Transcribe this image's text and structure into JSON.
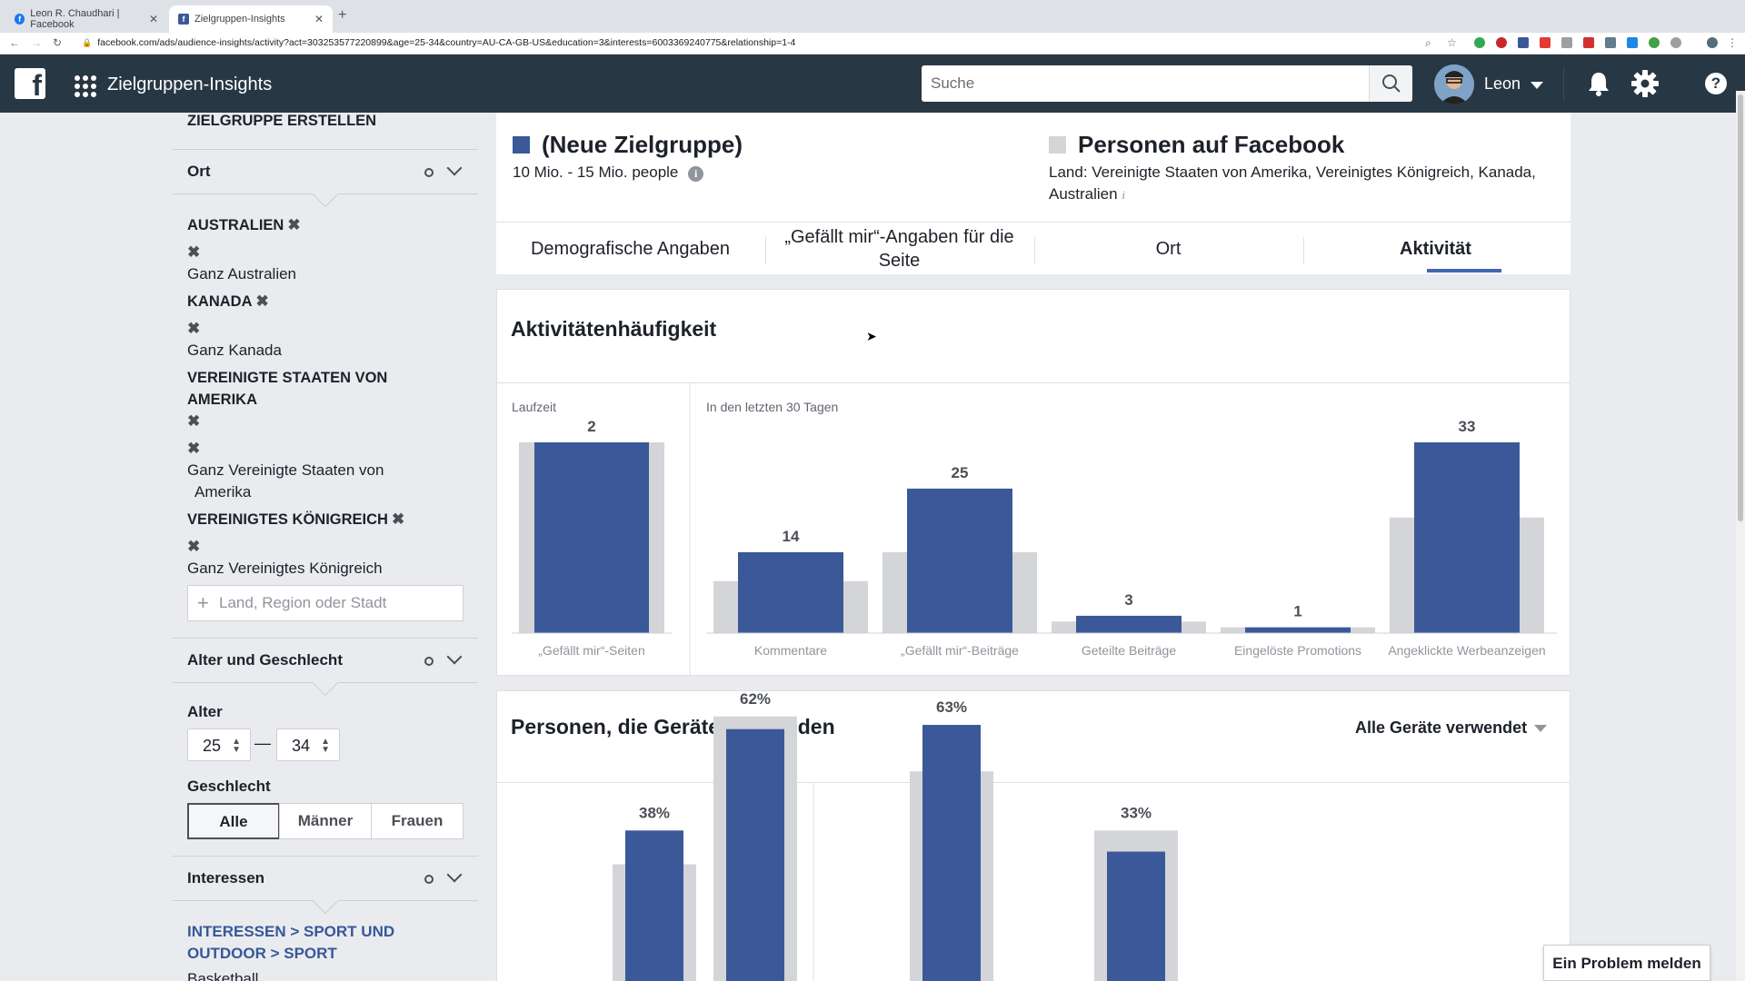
{
  "browser": {
    "tabs": [
      {
        "title": "Leon R. Chaudhari | Facebook"
      },
      {
        "title": "Zielgruppen-Insights"
      }
    ],
    "url": "facebook.com/ads/audience-insights/activity?act=303253577220899&age=25-34&country=AU-CA-GB-US&education=3&interests=6003369240775&relationship=1-4"
  },
  "header": {
    "app_title": "Zielgruppen-Insights",
    "search_placeholder": "Suche",
    "user_name": "Leon",
    "icons": [
      "facebook-logo-icon",
      "apps-grid-icon",
      "search-icon",
      "bell-icon",
      "gear-icon",
      "help-icon"
    ]
  },
  "sidebar": {
    "create_title": "ZIELGRUPPE ERSTELLEN",
    "location": {
      "label": "Ort",
      "countries": [
        {
          "name": "AUSTRALIEN",
          "scope": "Ganz Australien"
        },
        {
          "name": "KANADA",
          "scope": "Ganz Kanada"
        },
        {
          "name_line1": "VEREINIGTE STAATEN VON",
          "name_line2": "AMERIKA",
          "scope_line1": "Ganz Vereinigte Staaten von",
          "scope_line2": "Amerika"
        },
        {
          "name": "VEREINIGTES KÖNIGREICH",
          "scope": "Ganz Vereinigtes Königreich"
        }
      ],
      "input_placeholder": "Land, Region oder Stadt"
    },
    "age_gender": {
      "label": "Alter und Geschlecht",
      "age_label": "Alter",
      "age_min": "25",
      "age_max": "34",
      "age_dash": "—",
      "gender_label": "Geschlecht",
      "gender_options": [
        "Alle",
        "Männer",
        "Frauen"
      ],
      "gender_selected": "Alle"
    },
    "interests": {
      "label": "Interessen",
      "breadcrumb": "INTERESSEN > SPORT UND OUTDOOR > SPORT",
      "item": "Basketball"
    }
  },
  "audiences": {
    "left": {
      "title": "(Neue Zielgruppe)",
      "size": "10 Mio. - 15 Mio. people",
      "color": "#3b5998"
    },
    "right": {
      "title": "Personen auf Facebook",
      "desc_line1": "Land: Vereinigte Staaten von Amerika, Vereinigtes Königreich, Kanada,",
      "desc_line2": "Australien",
      "color": "#d3d5d9"
    }
  },
  "tabs": [
    {
      "label": "Demografische Angaben"
    },
    {
      "label": "„Gefällt mir“-Angaben für die Seite"
    },
    {
      "label": "Ort"
    },
    {
      "label": "Aktivität",
      "active": true
    }
  ],
  "activity_card": {
    "title": "Aktivitätenhäufigkeit"
  },
  "devices_card": {
    "title": "Personen, die Geräte verwenden",
    "filter": "Alle Geräte verwendet"
  },
  "report_button": "Ein Problem melden",
  "colors": {
    "primary": "#3b5998",
    "compare": "#d3d5d9",
    "header": "#283744",
    "link": "#365899"
  },
  "chart_data": [
    {
      "type": "bar",
      "title": "Aktivitätenhäufigkeit",
      "groups": [
        {
          "label": "Laufzeit",
          "categories": [
            "„Gefällt mir“-Seiten"
          ]
        },
        {
          "label": "In den letzten 30 Tagen",
          "categories": [
            "Kommentare",
            "„Gefällt mir“-Beiträge",
            "Geteilte Beiträge",
            "Eingelöste Promotions",
            "Angeklickte Werbeanzeigen"
          ]
        }
      ],
      "categories": [
        "„Gefällt mir“-Seiten",
        "Kommentare",
        "„Gefällt mir“-Beiträge",
        "Geteilte Beiträge",
        "Eingelöste Promotions",
        "Angeklickte Werbeanzeigen"
      ],
      "series": [
        {
          "values": [
            2,
            14,
            25,
            3,
            1,
            33
          ],
          "labeled": true
        },
        {
          "values": [
            2,
            9,
            14,
            2,
            1,
            20
          ],
          "labeled": false
        }
      ],
      "group_max": [
        2,
        33
      ]
    },
    {
      "type": "bar",
      "title": "Personen, die Geräte verwenden",
      "series": [
        {
          "values": [
            38,
            62,
            63,
            33
          ],
          "labels": [
            "38%",
            "62%",
            "63%",
            "33%"
          ]
        },
        {
          "values": [
            30,
            65,
            52,
            38
          ]
        }
      ]
    }
  ]
}
